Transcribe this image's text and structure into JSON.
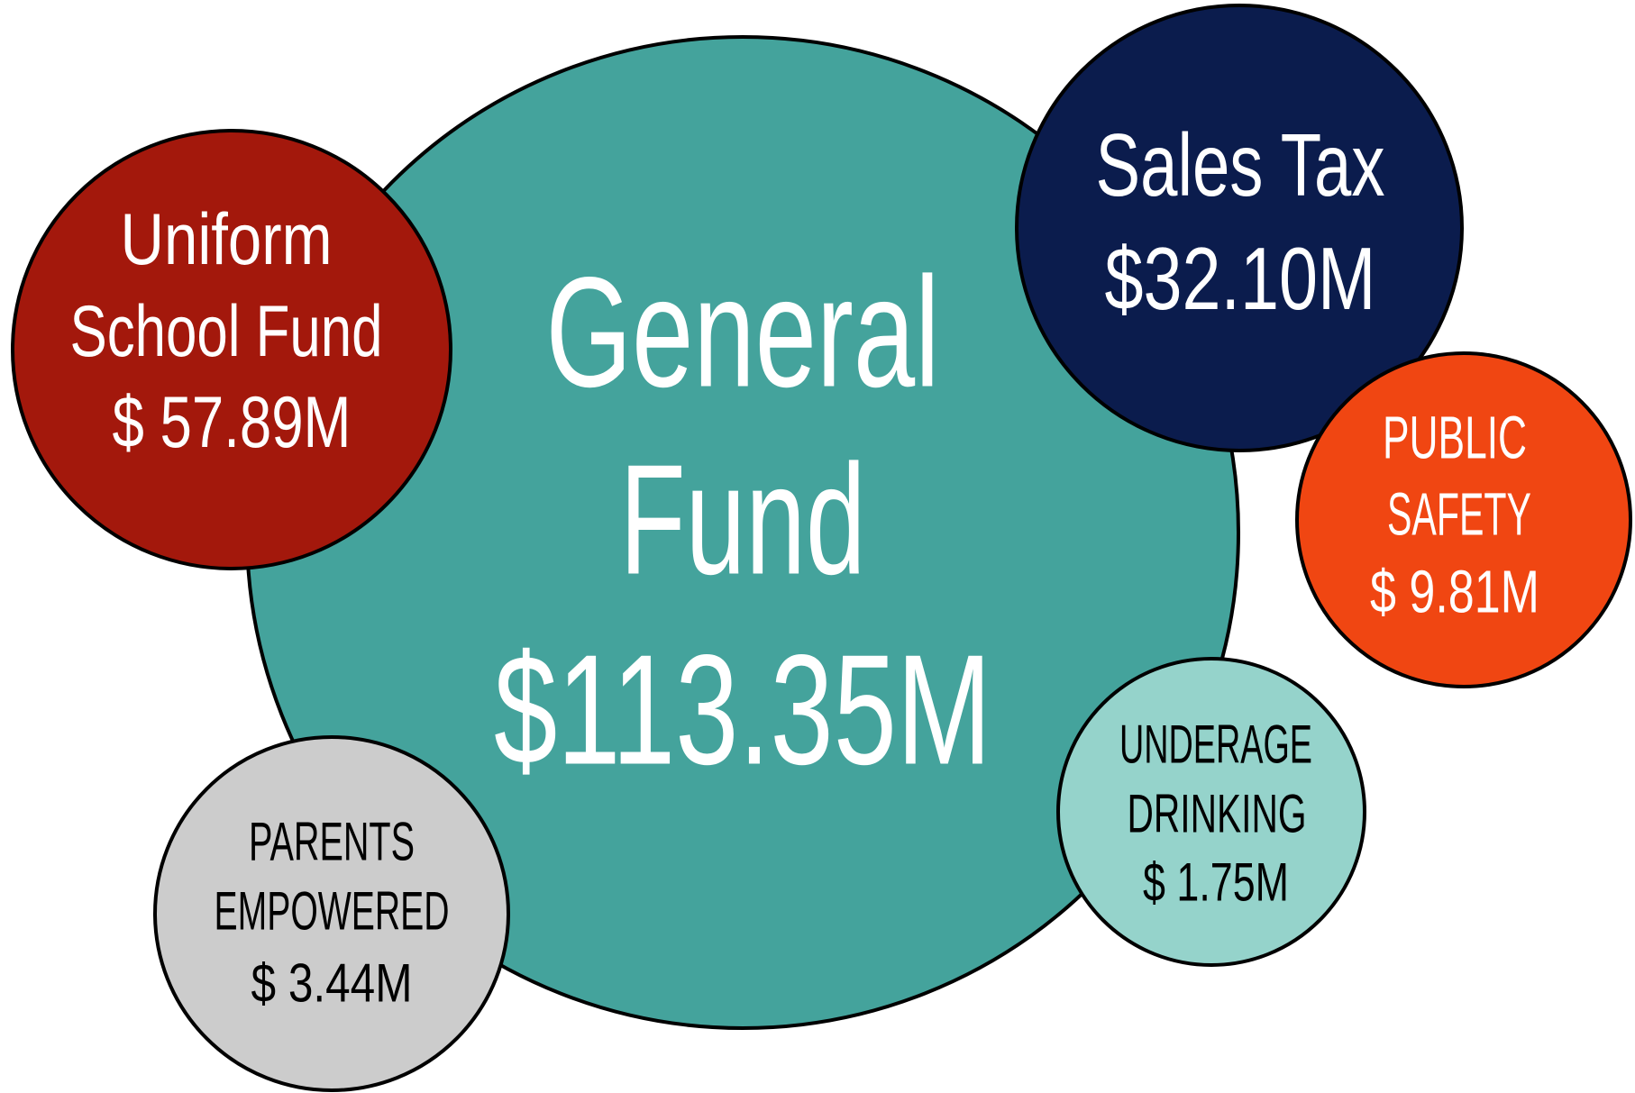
{
  "nodes": [
    {
      "lines": [
        "General",
        "Fund"
      ],
      "amount": "$113.35M"
    },
    {
      "lines": [
        "Uniform",
        "School Fund"
      ],
      "amount": "$ 57.89M"
    },
    {
      "lines": [
        "Sales Tax"
      ],
      "amount": "$32.10M"
    },
    {
      "lines": [
        "PUBLIC",
        "SAFETY"
      ],
      "amount": "$ 9.81M"
    },
    {
      "lines": [
        "UNDERAGE",
        "DRINKING"
      ],
      "amount": "$ 1.75M"
    },
    {
      "lines": [
        "PARENTS",
        "EMPOWERED"
      ],
      "amount": "$ 3.44M"
    }
  ]
}
